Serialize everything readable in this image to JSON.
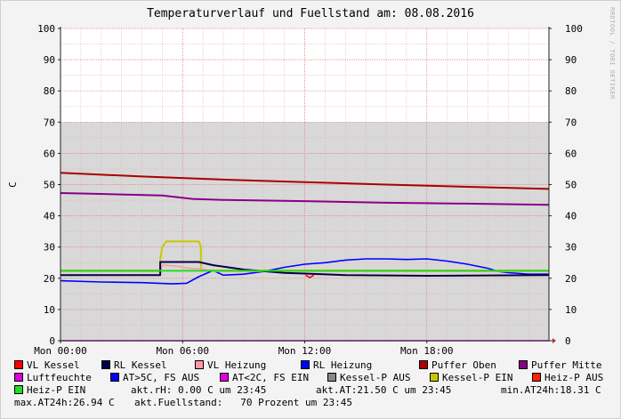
{
  "title": "Temperaturverlauf und Fuellstand am: 08.08.2016",
  "watermark": "RRDTOOL / TOBI OETIKER",
  "chart_data": {
    "type": "line",
    "ylabel": "C",
    "ylim": [
      0,
      100
    ],
    "yticks": [
      0,
      10,
      20,
      30,
      40,
      50,
      60,
      70,
      80,
      90,
      100
    ],
    "xlim": [
      0,
      24
    ],
    "xticks": [
      {
        "x": 0,
        "label": "Mon 00:00"
      },
      {
        "x": 6,
        "label": "Mon 06:00"
      },
      {
        "x": 12,
        "label": "Mon 12:00"
      },
      {
        "x": 18,
        "label": "Mon 18:00"
      }
    ],
    "shaded_area": {
      "name": "Fuellstand",
      "value": 70,
      "color": "#d8d8d8"
    },
    "series": [
      {
        "name": "Puffer Oben",
        "color": "#aa0000",
        "x": [
          0,
          4,
          8,
          12,
          16,
          20,
          24
        ],
        "y": [
          53.8,
          52.6,
          51.6,
          50.8,
          50.0,
          49.3,
          48.6
        ]
      },
      {
        "name": "Puffer Mitte",
        "color": "#880088",
        "x": [
          0,
          2,
          5,
          6.5,
          8,
          12,
          16,
          20,
          24
        ],
        "y": [
          47.3,
          47.0,
          46.5,
          45.4,
          45.1,
          44.7,
          44.2,
          43.9,
          43.5
        ]
      },
      {
        "name": "Kessel-P EIN",
        "color": "#c8c800",
        "x": [
          0,
          4.9,
          4.9,
          5.0,
          5.2,
          6.8,
          6.9,
          6.9,
          24
        ],
        "y": [
          22.5,
          22.5,
          26,
          30,
          31.8,
          31.8,
          30,
          22.5,
          22.5
        ]
      },
      {
        "name": "RL Heizung",
        "color": "#0000ff",
        "x": [
          0,
          2,
          4,
          5.5,
          6.2,
          6.8,
          7.5,
          8,
          9,
          10,
          11,
          12,
          13,
          14,
          15,
          16,
          17,
          18,
          19,
          20,
          21,
          21.5,
          22,
          23,
          24
        ],
        "y": [
          19.2,
          18.8,
          18.6,
          18.2,
          18.4,
          20.5,
          22.5,
          21.0,
          21.3,
          22.2,
          23.5,
          24.5,
          25.0,
          25.8,
          26.2,
          26.2,
          26.0,
          26.2,
          25.5,
          24.5,
          23.2,
          22.2,
          21.8,
          21.3,
          21.3
        ]
      },
      {
        "name": "VL Heizung",
        "color": "#ff99aa",
        "x": [
          0,
          4.9,
          5.0,
          5.6,
          6.3,
          7.0,
          7.5,
          24
        ],
        "y": [
          22.2,
          22.2,
          24.2,
          24.0,
          23.2,
          23.0,
          22.2,
          22.2
        ]
      },
      {
        "name": "RL Kessel",
        "color": "#000044",
        "x": [
          0,
          4.9,
          4.9,
          6.8,
          7.5,
          9,
          11,
          12,
          14,
          18,
          21,
          24
        ],
        "y": [
          21.0,
          21.0,
          25.2,
          25.2,
          24.2,
          22.8,
          21.7,
          21.5,
          21.0,
          20.8,
          20.9,
          21.0
        ]
      },
      {
        "name": "VL Kessel",
        "color": "#ff0000",
        "x": [
          12.05,
          12.25,
          12.45
        ],
        "y": [
          21.0,
          20.2,
          21.0
        ]
      },
      {
        "name": "Heiz-P EIN",
        "color": "#22dd22",
        "x": [
          0,
          24
        ],
        "y": [
          22.4,
          22.4
        ]
      },
      {
        "name": "Luftfeuchte",
        "color": "#dd00dd",
        "x": [
          0,
          24
        ],
        "y": [
          0,
          0
        ]
      }
    ]
  },
  "legend": [
    {
      "label": "VL Kessel",
      "color": "#ff0000"
    },
    {
      "label": "RL Kessel",
      "color": "#000044"
    },
    {
      "label": "VL Heizung",
      "color": "#ff99aa"
    },
    {
      "label": "RL Heizung",
      "color": "#0000ff"
    },
    {
      "label": "Puffer Oben",
      "color": "#aa0000"
    },
    {
      "label": "Puffer Mitte",
      "color": "#880088"
    },
    {
      "label": "Luftfeuchte",
      "color": "#dd00dd"
    },
    {
      "label": "AT>5C, FS AUS",
      "color": "#0000ff"
    },
    {
      "label": "AT<2C, FS EIN",
      "color": "#dd00dd"
    },
    {
      "label": "Kessel-P AUS",
      "color": "#888888"
    },
    {
      "label": "Kessel-P EIN",
      "color": "#c8c800"
    },
    {
      "label": "Heiz-P AUS",
      "color": "#ff2200"
    },
    {
      "label": "Heiz-P EIN",
      "color": "#22dd22"
    }
  ],
  "stats": {
    "rh": "akt.rH: 0.00 C um 23:45",
    "at": "akt.AT:21.50 C um 23:45",
    "min_at": "min.AT24h:18.31 C",
    "max_at": "max.AT24h:26.94 C",
    "fuellstand": "akt.Fuellstand:   70 Prozent um 23:45"
  }
}
